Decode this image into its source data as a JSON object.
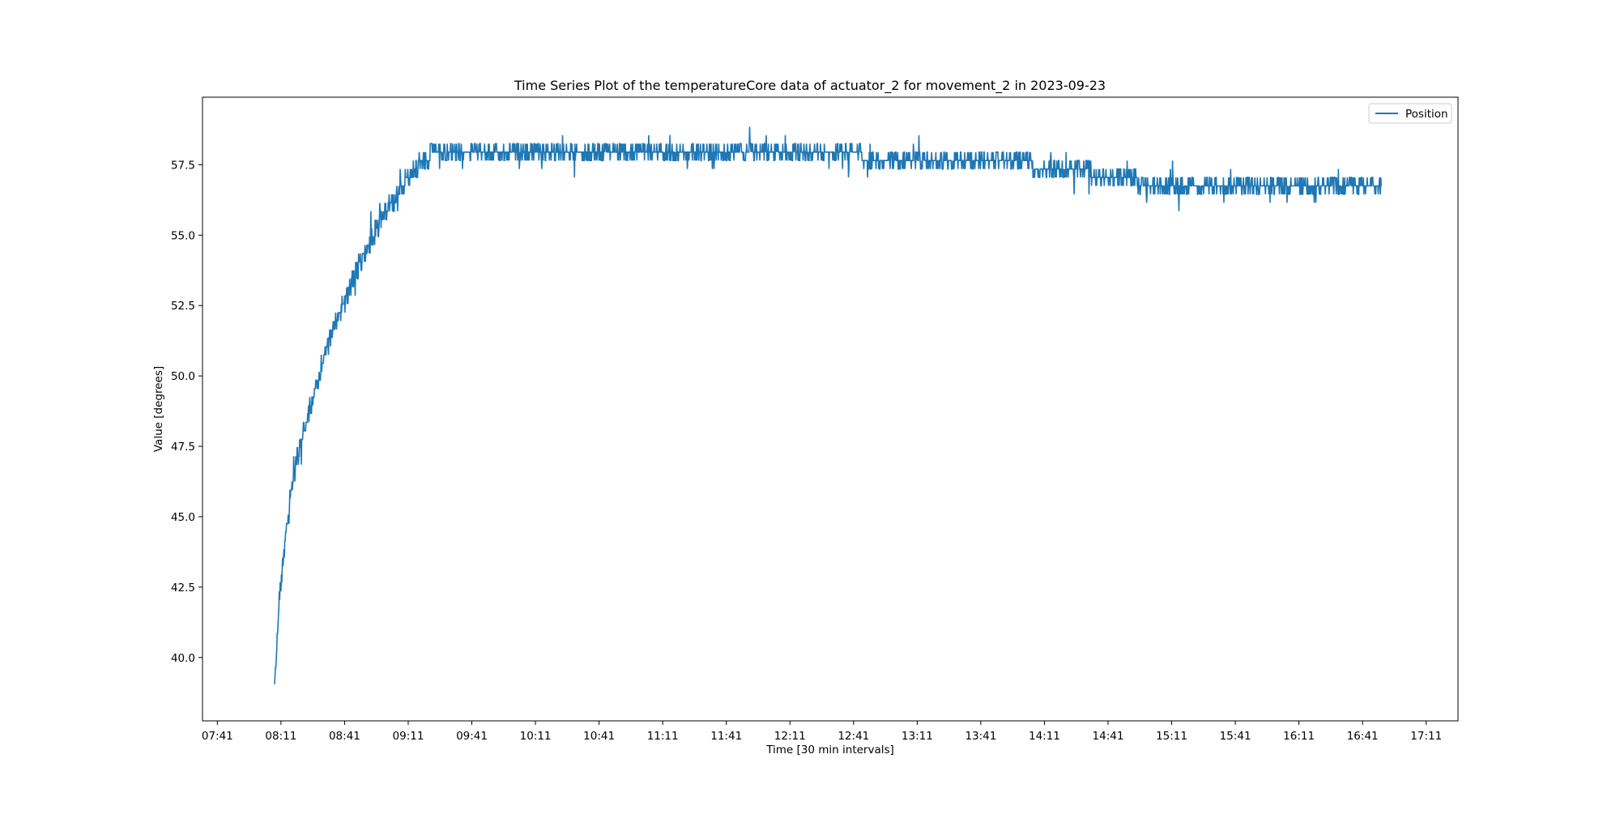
{
  "chart_data": {
    "type": "line",
    "title": "Time Series Plot of the temperatureCore data of actuator_2 for movement_2 in 2023-09-23",
    "xlabel": "Time [30 min intervals]",
    "ylabel": "Value [degrees]",
    "x_tick_labels": [
      "07:41",
      "08:11",
      "08:41",
      "09:11",
      "09:41",
      "10:11",
      "10:41",
      "11:11",
      "11:41",
      "12:11",
      "12:41",
      "13:11",
      "13:41",
      "14:11",
      "14:41",
      "15:11",
      "15:41",
      "16:11",
      "16:41",
      "17:11"
    ],
    "y_tick_labels": [
      "40.0",
      "42.5",
      "45.0",
      "47.5",
      "50.0",
      "52.5",
      "55.0",
      "57.5"
    ],
    "y_ticks": [
      40.0,
      42.5,
      45.0,
      47.5,
      50.0,
      52.5,
      55.0,
      57.5
    ],
    "xlim": [
      "07:34",
      "17:26"
    ],
    "ylim": [
      37.75,
      59.9
    ],
    "grid": false,
    "legend_position": "top-right",
    "series": [
      {
        "name": "Position",
        "color": "#1f77b4",
        "x": [
          "08:08",
          "08:09",
          "08:10",
          "08:12",
          "08:14",
          "08:16",
          "08:20",
          "08:25",
          "08:30",
          "08:35",
          "08:40",
          "08:45",
          "08:50",
          "08:55",
          "09:00",
          "09:05",
          "09:10",
          "09:15",
          "09:20",
          "09:25",
          "09:30",
          "09:35",
          "09:40",
          "10:00",
          "10:30",
          "11:00",
          "11:30",
          "12:00",
          "12:30",
          "13:00",
          "13:30",
          "13:45",
          "14:00",
          "14:15",
          "14:30",
          "14:45",
          "15:00",
          "15:30",
          "16:00",
          "16:30",
          "16:50"
        ],
        "values": [
          38.9,
          40.3,
          41.8,
          43.5,
          45.0,
          46.0,
          47.5,
          48.9,
          50.3,
          51.5,
          52.4,
          53.4,
          54.3,
          55.0,
          55.8,
          56.3,
          56.9,
          57.4,
          57.7,
          57.9,
          57.95,
          57.95,
          58.0,
          57.95,
          57.9,
          57.95,
          57.95,
          57.85,
          57.8,
          57.7,
          57.65,
          57.6,
          57.5,
          57.35,
          57.2,
          56.95,
          56.8,
          56.6,
          56.55,
          56.55,
          56.6
        ]
      }
    ]
  }
}
